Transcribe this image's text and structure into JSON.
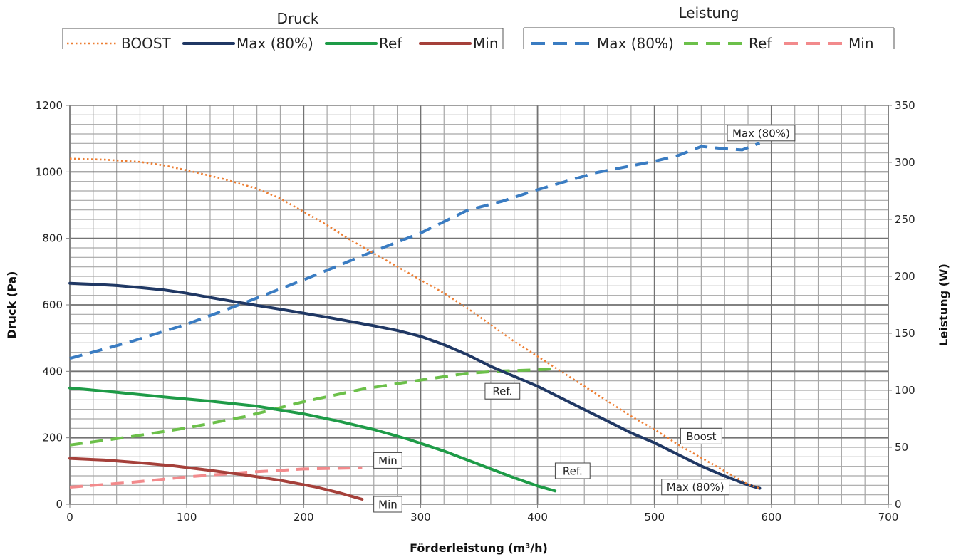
{
  "legend": {
    "druck_title": "Druck",
    "leistung_title": "Leistung"
  },
  "chart_data": {
    "type": "line",
    "xlabel": "Förderleistung (m³/h)",
    "ylabel_left": "Druck (Pa)",
    "ylabel_right": "Leistung (W)",
    "xlim": [
      0,
      700
    ],
    "ylim_left": [
      0,
      1200
    ],
    "ylim_right": [
      0,
      350
    ],
    "xticks": [
      0,
      100,
      200,
      300,
      400,
      500,
      600,
      700
    ],
    "yticks_left": [
      0,
      200,
      400,
      600,
      800,
      1000,
      1200
    ],
    "yticks_right": [
      0,
      50,
      100,
      150,
      200,
      250,
      300,
      350
    ],
    "grid": true,
    "series": [
      {
        "name": "BOOST",
        "group": "Druck",
        "axis": "left",
        "color": "#ED7D31",
        "style": "dotted",
        "x": [
          0,
          30,
          60,
          80,
          100,
          130,
          160,
          180,
          200,
          220,
          240,
          260,
          280,
          300,
          320,
          340,
          360,
          380,
          400,
          420,
          440,
          460,
          480,
          500,
          520,
          540,
          560,
          580,
          590
        ],
        "y": [
          1040,
          1037,
          1030,
          1020,
          1005,
          980,
          950,
          920,
          880,
          840,
          795,
          755,
          715,
          675,
          635,
          590,
          540,
          490,
          445,
          400,
          355,
          310,
          265,
          225,
          180,
          140,
          100,
          60,
          48
        ]
      },
      {
        "name": "Max (80%)",
        "group": "Druck",
        "axis": "left",
        "color": "#203864",
        "style": "solid",
        "x": [
          0,
          20,
          40,
          60,
          80,
          100,
          120,
          140,
          160,
          180,
          200,
          220,
          240,
          260,
          280,
          300,
          320,
          340,
          360,
          380,
          400,
          420,
          440,
          460,
          480,
          500,
          520,
          540,
          560,
          580,
          590
        ],
        "y": [
          665,
          662,
          658,
          652,
          645,
          635,
          622,
          610,
          598,
          587,
          575,
          563,
          550,
          537,
          523,
          505,
          480,
          450,
          415,
          385,
          355,
          320,
          285,
          250,
          215,
          185,
          150,
          115,
          85,
          58,
          48
        ]
      },
      {
        "name": "Ref",
        "group": "Druck",
        "axis": "left",
        "color": "#1E9B47",
        "style": "solid",
        "x": [
          0,
          40,
          80,
          120,
          160,
          200,
          230,
          260,
          290,
          320,
          350,
          380,
          400,
          415
        ],
        "y": [
          350,
          337,
          323,
          310,
          295,
          272,
          250,
          225,
          195,
          160,
          120,
          80,
          55,
          40
        ]
      },
      {
        "name": "Min",
        "group": "Druck",
        "axis": "left",
        "color": "#A5403A",
        "style": "solid",
        "x": [
          0,
          30,
          60,
          90,
          120,
          150,
          180,
          210,
          230,
          250
        ],
        "y": [
          138,
          133,
          125,
          115,
          102,
          88,
          72,
          52,
          35,
          15
        ]
      },
      {
        "name": "Max (80%)",
        "group": "Leistung",
        "axis": "right",
        "color": "#3A7CC2",
        "style": "dashed",
        "x": [
          0,
          50,
          100,
          150,
          200,
          250,
          300,
          340,
          370,
          400,
          450,
          500,
          520,
          540,
          560,
          575,
          590
        ],
        "y": [
          128,
          142,
          158,
          177,
          197,
          218,
          238,
          258,
          266,
          276,
          291,
          301,
          306,
          314,
          312,
          311,
          317
        ]
      },
      {
        "name": "Ref",
        "group": "Leistung",
        "axis": "right",
        "color": "#6CC04A",
        "style": "dashed",
        "x": [
          0,
          50,
          100,
          150,
          200,
          250,
          300,
          340,
          370,
          400,
          415
        ],
        "y": [
          52,
          59,
          67,
          77,
          90,
          101,
          109,
          115,
          117,
          118,
          119
        ]
      },
      {
        "name": "Min",
        "group": "Leistung",
        "axis": "right",
        "color": "#F28A8C",
        "style": "dashed",
        "x": [
          0,
          50,
          100,
          150,
          200,
          250
        ],
        "y": [
          15,
          19,
          24,
          28,
          31,
          32
        ]
      }
    ],
    "annotations": [
      {
        "text": "Max (80%)",
        "x": 590,
        "y": 317,
        "axis": "right"
      },
      {
        "text": "Ref.",
        "x": 370,
        "y": 103,
        "axis": "right"
      },
      {
        "text": "Min",
        "x": 272,
        "y": 36,
        "axis": "right"
      },
      {
        "text": "Ref.",
        "x": 430,
        "y": 75,
        "axis": "left"
      },
      {
        "text": "Min",
        "x": 272,
        "y": 30,
        "axis": "left"
      },
      {
        "text": "Boost",
        "x": 540,
        "y": 205,
        "axis": "left"
      },
      {
        "text": "Max (80%)",
        "x": 535,
        "y": 52,
        "axis": "left"
      }
    ]
  }
}
